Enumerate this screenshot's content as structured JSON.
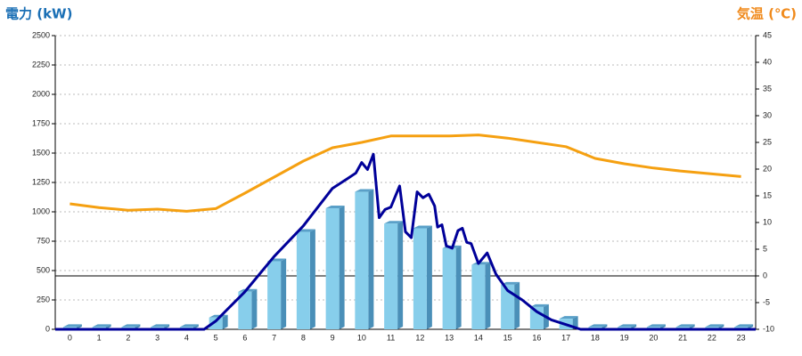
{
  "chart_data": {
    "type": "bar",
    "y_title": "電力 (kW)",
    "y2_title": "気温 (℃)",
    "categories": [
      "0",
      "1",
      "2",
      "3",
      "4",
      "5",
      "6",
      "7",
      "8",
      "9",
      "10",
      "11",
      "12",
      "13",
      "14",
      "15",
      "16",
      "17",
      "18",
      "19",
      "20",
      "21",
      "22",
      "23"
    ],
    "ylim": [
      0,
      2500
    ],
    "yticks": [
      0,
      250,
      500,
      750,
      1000,
      1250,
      1500,
      1750,
      2000,
      2250,
      2500
    ],
    "y2lim": [
      -10,
      45
    ],
    "y2ticks": [
      -10,
      -5,
      0,
      5,
      10,
      15,
      20,
      25,
      30,
      35,
      40,
      45
    ],
    "grid": true,
    "reference_line": {
      "axis": "y2",
      "value": 0,
      "color": "#000000"
    },
    "series": [
      {
        "type": "bar",
        "axis": "y",
        "color": "#87ceeb",
        "values": [
          20,
          20,
          20,
          20,
          20,
          100,
          320,
          580,
          830,
          1030,
          1170,
          900,
          860,
          690,
          550,
          380,
          190,
          90,
          20,
          20,
          20,
          20,
          20,
          20
        ]
      },
      {
        "type": "line",
        "axis": "y",
        "color": "#000099",
        "x": [
          -0.5,
          4.6,
          5,
          6,
          7,
          8,
          9,
          9.5,
          9.8,
          10,
          10.2,
          10.4,
          10.6,
          10.8,
          11,
          11.3,
          11.5,
          11.7,
          11.9,
          12.1,
          12.3,
          12.5,
          12.6,
          12.75,
          12.9,
          13.1,
          13.3,
          13.45,
          13.6,
          13.75,
          14,
          14.3,
          14.6,
          15,
          15.5,
          16,
          16.5,
          17,
          17.5,
          23.5
        ],
        "values": [
          0,
          0,
          70,
          320,
          620,
          880,
          1200,
          1280,
          1330,
          1420,
          1360,
          1490,
          950,
          1020,
          1040,
          1220,
          830,
          780,
          1170,
          1120,
          1150,
          1050,
          870,
          890,
          710,
          690,
          840,
          860,
          740,
          730,
          560,
          650,
          470,
          330,
          250,
          150,
          80,
          40,
          0,
          0
        ]
      },
      {
        "type": "line",
        "axis": "y2",
        "color": "#f5a011",
        "values": [
          13.5,
          12.8,
          12.3,
          12.5,
          12.1,
          12.6,
          15.5,
          18.5,
          21.5,
          24,
          25,
          26.2,
          26.2,
          26.2,
          26.4,
          25.8,
          25,
          24.2,
          22,
          21,
          20.2,
          19.6,
          19.1,
          18.6
        ]
      }
    ]
  }
}
